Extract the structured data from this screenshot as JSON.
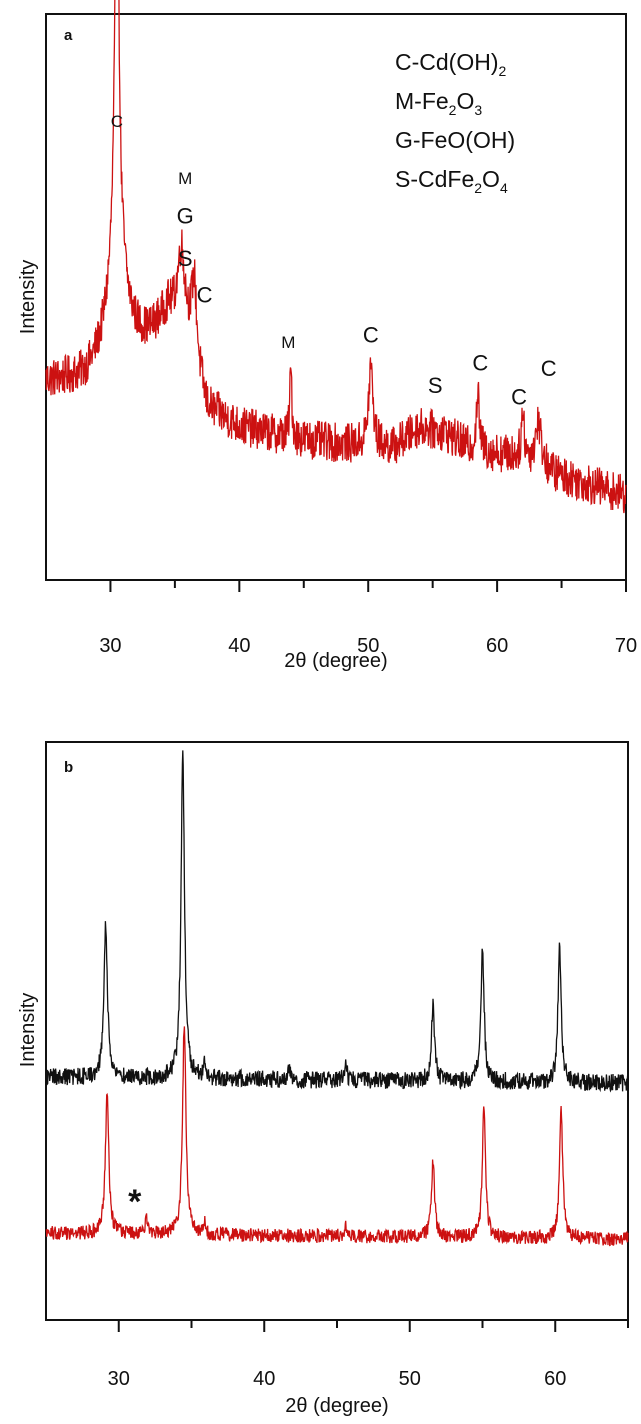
{
  "chart_data": [
    {
      "panel_label": "a",
      "type": "line",
      "xlabel": "2θ (degree)",
      "ylabel": "Intensity",
      "xlim": [
        25,
        70
      ],
      "ylim": [
        0,
        100
      ],
      "xticks": [
        30,
        40,
        50,
        60,
        70
      ],
      "grid": false,
      "legend": {
        "position": "top-right",
        "entries": [
          {
            "main": "C-Cd(OH)",
            "sub": "2",
            "tail": ""
          },
          {
            "main": "M-Fe",
            "sub": "2",
            "tail": "O",
            "sub2": "3"
          },
          {
            "main": "G-FeO(OH)",
            "sub": "",
            "tail": ""
          },
          {
            "main": "S-CdFe",
            "sub": "2",
            "tail": "O",
            "sub2": "4"
          }
        ]
      },
      "series": [
        {
          "color": "#cc1111",
          "baseline": [
            [
              25,
              35
            ],
            [
              28,
              35
            ],
            [
              30,
              37
            ],
            [
              33,
              42
            ],
            [
              34.5,
              47
            ],
            [
              36,
              42
            ],
            [
              37.5,
              30
            ],
            [
              40,
              27
            ],
            [
              44,
              25
            ],
            [
              48,
              24
            ],
            [
              52,
              23.5
            ],
            [
              54,
              27
            ],
            [
              56,
              26
            ],
            [
              58,
              23
            ],
            [
              61,
              22
            ],
            [
              64,
              19
            ],
            [
              67,
              17
            ],
            [
              70,
              15
            ]
          ],
          "peaks": [
            {
              "x": 30.5,
              "h": 78,
              "w": 0.18
            },
            {
              "x": 30.5,
              "h": 20,
              "w": 0.9
            },
            {
              "x": 35.5,
              "h": 14,
              "w": 0.35
            },
            {
              "x": 36.5,
              "h": 14,
              "w": 0.25
            },
            {
              "x": 44.0,
              "h": 12,
              "w": 0.1
            },
            {
              "x": 50.2,
              "h": 14,
              "w": 0.2
            },
            {
              "x": 58.5,
              "h": 10,
              "w": 0.15
            },
            {
              "x": 62.0,
              "h": 8,
              "w": 0.15
            },
            {
              "x": 63.2,
              "h": 8,
              "w": 0.3
            }
          ],
          "noise": 3.5
        }
      ],
      "annotations": [
        {
          "text": "C",
          "x": 30.5,
          "y": 80,
          "size": "small"
        },
        {
          "text": "M",
          "x": 35.8,
          "y": 70,
          "size": "small"
        },
        {
          "text": "G",
          "x": 35.8,
          "y": 63,
          "size": "large"
        },
        {
          "text": "S",
          "x": 35.8,
          "y": 55.5,
          "size": "large"
        },
        {
          "text": "C",
          "x": 37.3,
          "y": 49,
          "size": "large"
        },
        {
          "text": "M",
          "x": 43.8,
          "y": 41,
          "size": "small"
        },
        {
          "text": "C",
          "x": 50.2,
          "y": 42,
          "size": "large"
        },
        {
          "text": "S",
          "x": 55.2,
          "y": 33,
          "size": "large"
        },
        {
          "text": "C",
          "x": 58.7,
          "y": 37,
          "size": "large"
        },
        {
          "text": "C",
          "x": 61.7,
          "y": 31,
          "size": "large"
        },
        {
          "text": "C",
          "x": 64.0,
          "y": 36,
          "size": "large"
        }
      ]
    },
    {
      "panel_label": "b",
      "type": "line",
      "xlabel": "2θ (degree)",
      "ylabel": "Intensity",
      "xlim": [
        25,
        65
      ],
      "ylim": [
        0,
        100
      ],
      "xticks": [
        30,
        40,
        50,
        60
      ],
      "grid": false,
      "series": [
        {
          "color": "#111111",
          "baseline": [
            [
              25,
              42
            ],
            [
              65,
              41
            ]
          ],
          "peaks": [
            {
              "x": 29.1,
              "h": 26,
              "w": 0.15
            },
            {
              "x": 34.4,
              "h": 56,
              "w": 0.14
            },
            {
              "x": 35.9,
              "h": 3,
              "w": 0.1
            },
            {
              "x": 41.7,
              "h": 2,
              "w": 0.1
            },
            {
              "x": 45.6,
              "h": 2.5,
              "w": 0.1
            },
            {
              "x": 51.6,
              "h": 13,
              "w": 0.13
            },
            {
              "x": 55.0,
              "h": 23,
              "w": 0.13
            },
            {
              "x": 60.3,
              "h": 24,
              "w": 0.13
            }
          ],
          "noise": 1.5
        },
        {
          "color": "#cc1111",
          "baseline": [
            [
              25,
              15
            ],
            [
              65,
              14
            ]
          ],
          "peaks": [
            {
              "x": 29.2,
              "h": 24,
              "w": 0.14
            },
            {
              "x": 31.9,
              "h": 3,
              "w": 0.1
            },
            {
              "x": 34.5,
              "h": 36,
              "w": 0.14
            },
            {
              "x": 35.9,
              "h": 2,
              "w": 0.1
            },
            {
              "x": 45.6,
              "h": 2,
              "w": 0.1
            },
            {
              "x": 51.6,
              "h": 13,
              "w": 0.13
            },
            {
              "x": 55.1,
              "h": 23,
              "w": 0.13
            },
            {
              "x": 60.4,
              "h": 23,
              "w": 0.13
            }
          ],
          "noise": 1.2
        }
      ],
      "annotations": [
        {
          "text": "*",
          "x": 31.1,
          "y": 18.5,
          "size": "star"
        }
      ]
    }
  ]
}
